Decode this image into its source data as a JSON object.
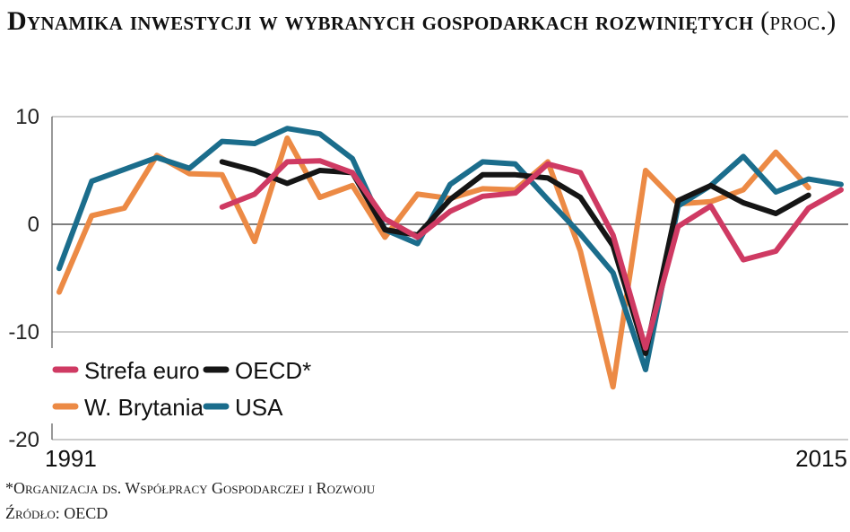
{
  "chart_data": {
    "type": "line",
    "title": "Dynamika inwestycji w wybranych gospodarkach rozwiniętych",
    "unit": "(proc.)",
    "x": [
      1991,
      1992,
      1993,
      1994,
      1995,
      1996,
      1997,
      1998,
      1999,
      2000,
      2001,
      2002,
      2003,
      2004,
      2005,
      2006,
      2007,
      2008,
      2009,
      2010,
      2011,
      2012,
      2013,
      2014,
      2015
    ],
    "x_tick_labels": [
      "1991",
      "2015"
    ],
    "ylim": [
      -20,
      10
    ],
    "y_ticks": [
      10,
      0,
      -10,
      -20
    ],
    "y_tick_labels": [
      "10",
      "0",
      "-10",
      "-20"
    ],
    "grid": true,
    "legend_position": "bottom-left",
    "series": [
      {
        "name": "Strefa euro",
        "color": "#cf3a63",
        "values": [
          null,
          null,
          null,
          null,
          null,
          1.6,
          2.8,
          5.8,
          5.9,
          4.8,
          0.5,
          -1.2,
          1.2,
          2.6,
          2.9,
          5.6,
          4.8,
          -1.0,
          -11.5,
          -0.2,
          1.7,
          -3.3,
          -2.5,
          1.5,
          3.2
        ]
      },
      {
        "name": "OECD*",
        "color": "#151515",
        "values": [
          null,
          null,
          null,
          null,
          null,
          5.8,
          5.0,
          3.8,
          5.0,
          4.8,
          -0.5,
          -1.0,
          2.3,
          4.6,
          4.6,
          4.3,
          2.5,
          -2.0,
          -12.0,
          2.2,
          3.6,
          2.0,
          1.0,
          2.7,
          null
        ]
      },
      {
        "name": "W. Brytania",
        "color": "#ec8a45",
        "values": [
          -6.3,
          0.8,
          1.5,
          6.4,
          4.7,
          4.6,
          -1.6,
          8.0,
          2.5,
          3.6,
          -1.2,
          2.8,
          2.4,
          3.3,
          3.2,
          5.8,
          -2.5,
          -15.1,
          5.0,
          1.9,
          2.1,
          3.2,
          6.7,
          3.4,
          null
        ]
      },
      {
        "name": "USA",
        "color": "#1b6d8c",
        "values": [
          -4.1,
          4.0,
          5.1,
          6.2,
          5.2,
          7.7,
          7.5,
          8.9,
          8.4,
          6.1,
          -0.5,
          -1.8,
          3.7,
          5.8,
          5.6,
          2.3,
          -0.9,
          -4.5,
          -13.5,
          1.7,
          3.6,
          6.3,
          3.0,
          4.2,
          3.7
        ]
      }
    ]
  },
  "footnote": "*Organizacja ds. Współpracy Gospodarczej i Rozwoju",
  "source": "Źródło: OECD"
}
